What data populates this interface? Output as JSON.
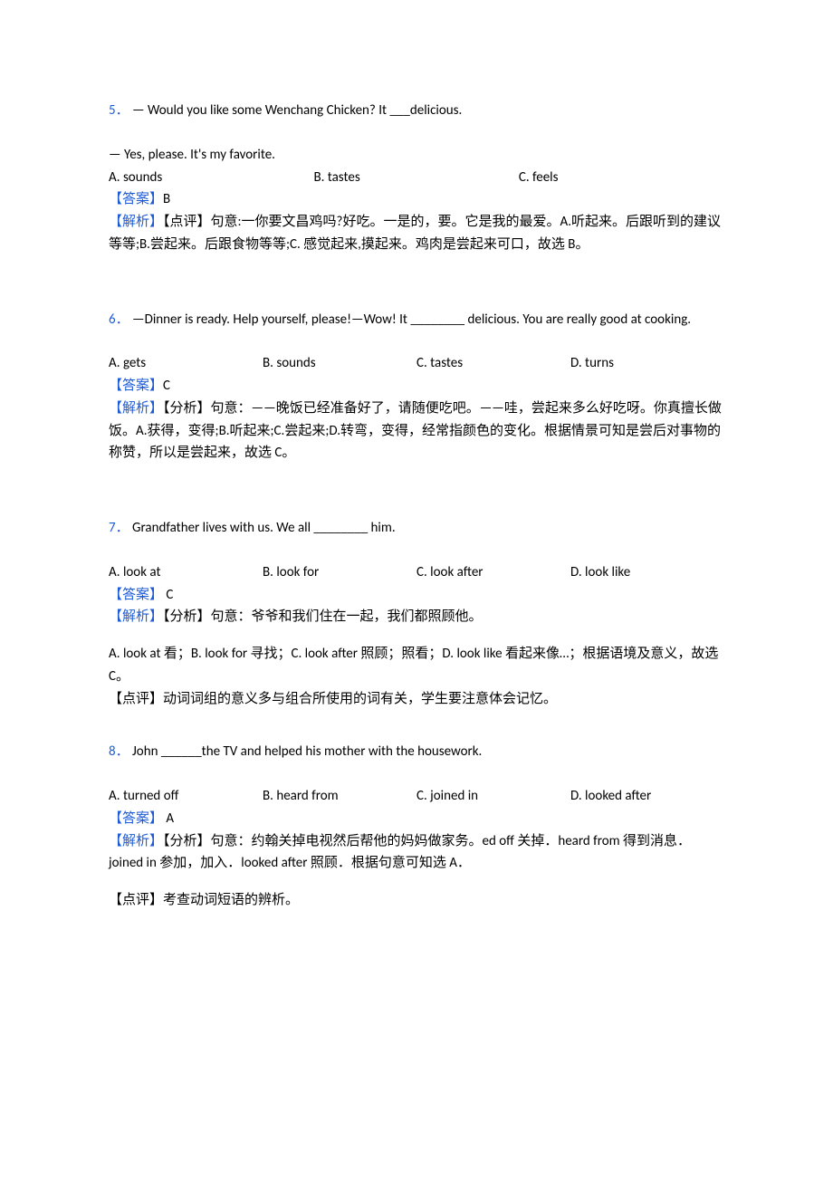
{
  "q5": {
    "num": "5．",
    "line1": "— Would you like some Wenchang Chicken? It ___delicious.",
    "line2": "— Yes, please. It's my favorite.",
    "optA": "A. sounds",
    "optB": "B. tastes",
    "optC": "C. feels",
    "answer_label": "【答案】",
    "answer_val": "B",
    "analysis_label": "【解析】",
    "analysis_tag": "【点评】",
    "analysis_body": "句意:一你要文昌鸡吗?好吃。一是的，要。它是我的最爱。A.听起来。后跟听到的建议等等;B.尝起来。后跟食物等等;C. 感觉起来,摸起来。鸡肉是尝起来可口，故选 B。"
  },
  "q6": {
    "num": "6．",
    "line1": "—Dinner is ready. Help yourself, please!—Wow! It ________ delicious. You are really good at cooking.",
    "optA": "A. gets",
    "optB": "B. sounds",
    "optC": "C. tastes",
    "optD": "D. turns",
    "answer_label": "【答案】",
    "answer_val": "C",
    "analysis_label": "【解析】",
    "analysis_tag": "【分析】",
    "analysis_body": "句意：——晚饭已经准备好了，请随便吃吧。——哇，尝起来多么好吃呀。你真擅长做饭。A.获得，变得;B.听起来;C.尝起来;D.转弯，变得，经常指颜色的变化。根据情景可知是尝后对事物的称赞，所以是尝起来，故选 C。"
  },
  "q7": {
    "num": "7．",
    "line1": "Grandfather lives with us. We all ________ him.",
    "optA": "A. look at",
    "optB": "B. look for",
    "optC": "C. look after",
    "optD": "D. look like",
    "answer_label": "【答案】",
    "answer_val": " C",
    "analysis_label": "【解析】",
    "analysis_tag": "【分析】",
    "analysis_body1": "句意：爷爷和我们住在一起，我们都照顾他。",
    "analysis_body2": "A. look at 看；B. look for 寻找；C. look after 照顾；照看；D. look like 看起来像…；根据语境及意义，故选 C。",
    "comment": "【点评】动词词组的意义多与组合所使用的词有关，学生要注意体会记忆。"
  },
  "q8": {
    "num": "8．",
    "line1": "John ______the TV and helped his mother with the housework.",
    "optA": "A. turned off",
    "optB": "B. heard from",
    "optC": "C. joined in",
    "optD": "D. looked after",
    "answer_label": "【答案】",
    "answer_val": " A",
    "analysis_label": "【解析】",
    "analysis_tag": "【分析】",
    "analysis_body": "句意：约翰关掉电视然后帮他的妈妈做家务。ed off 关掉．heard from 得到消息．joined in 参加，加入．looked after 照顾．根据句意可知选 A．",
    "comment": "【点评】考查动词短语的辨析。"
  }
}
